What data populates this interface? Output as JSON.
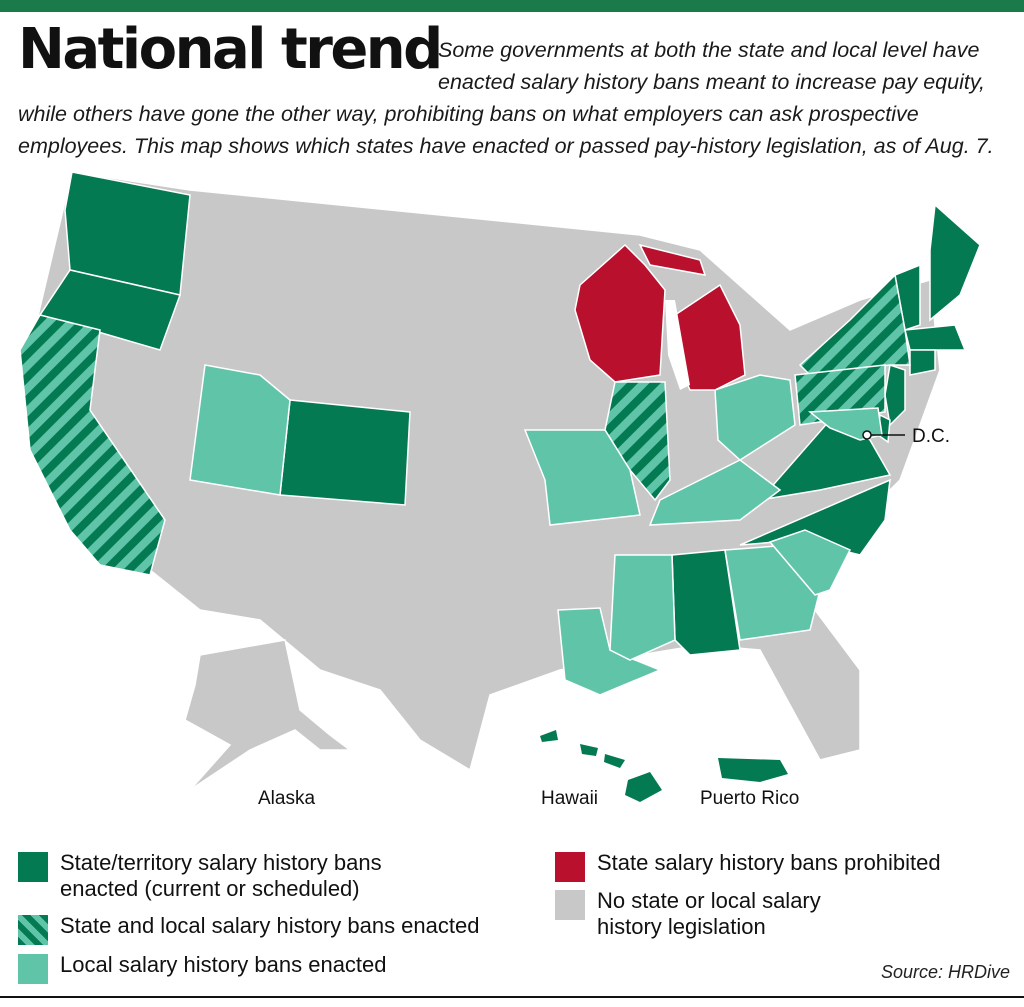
{
  "header": {
    "title": "National trend",
    "intro": "Some governments at both the state and local level have enacted salary history bans meant to increase pay equity, while others have gone the other way, prohibiting bans on what employers can ask prospective employees. This map shows which states have enacted or passed pay-history legislation, as of Aug. 7."
  },
  "colors": {
    "state_ban": "#047a52",
    "state_and_local_ban_stripe": "#5fc4a8",
    "local_ban": "#5fc4a8",
    "prohibited": "#b8102d",
    "no_legislation": "#c8c8c8",
    "accent_bar": "#1a7a4a"
  },
  "map_labels": {
    "dc": "D.C.",
    "alaska": "Alaska",
    "hawaii": "Hawaii",
    "puerto_rico": "Puerto Rico"
  },
  "legend": {
    "state_ban": "State/territory salary history bans enacted (current or scheduled)",
    "state_and_local": "State and local salary history bans enacted",
    "local": "Local salary history bans enacted",
    "prohibited": "State salary history bans prohibited",
    "none": "No state or local salary history legislation"
  },
  "categories": {
    "state_ban": [
      "Washington",
      "Oregon",
      "Colorado",
      "Alabama",
      "Virginia",
      "North Carolina",
      "Maine",
      "Vermont",
      "Massachusetts",
      "Connecticut",
      "New Jersey",
      "Delaware",
      "Hawaii",
      "Puerto Rico"
    ],
    "state_and_local": [
      "California",
      "Illinois",
      "New York",
      "Pennsylvania"
    ],
    "local": [
      "Utah",
      "Missouri",
      "Kentucky",
      "Ohio",
      "Louisiana",
      "Mississippi",
      "Georgia",
      "South Carolina",
      "Maryland"
    ],
    "prohibited": [
      "Wisconsin",
      "Michigan"
    ]
  },
  "source": "Source: HRDive"
}
